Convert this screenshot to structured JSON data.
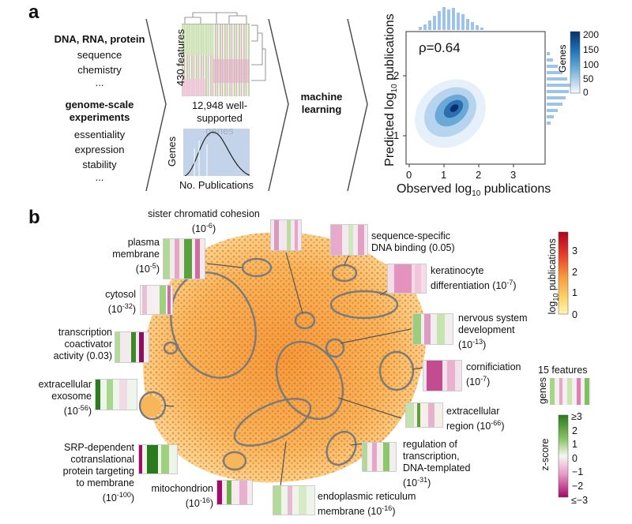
{
  "panel_a": {
    "letter": "a",
    "inputs": {
      "heading1": "DNA, RNA, protein",
      "items1": [
        "sequence",
        "chemistry",
        "..."
      ],
      "heading2": "genome-scale experiments",
      "items2": [
        "essentiality",
        "expression",
        "stability",
        "..."
      ]
    },
    "matrix": {
      "rows_label": "430 features",
      "cols_label": "12,948 well-supported genes"
    },
    "hist": {
      "ylabel": "Genes",
      "xlabel": "No. Publications"
    },
    "ml_label": "machine learning",
    "scatter": {
      "rho": "ρ=0.64",
      "xlabel": "Observed log",
      "xlabel_sub": "10",
      "xlabel_tail": " publications",
      "ylabel": "Predicted log",
      "ylabel_sub": "10",
      "ylabel_tail": " publications",
      "xticks": [
        "0",
        "1",
        "2",
        "3"
      ],
      "yticks": [
        "1",
        "2"
      ],
      "cbar_label": "Genes",
      "cbar_ticks": [
        "200",
        "150",
        "100",
        "50",
        "0"
      ],
      "cbar_colors": [
        "#08306b",
        "#2171b5",
        "#6baed6",
        "#c6dbef",
        "#f7fbff"
      ]
    }
  },
  "panel_b": {
    "letter": "b",
    "annotations": {
      "sister": "sister chromatid cohesion",
      "sister_p": "(10",
      "sister_exp": "-6",
      "seq": "sequence-specific",
      "seq2": "DNA binding (0.05)",
      "plasma1": "plasma",
      "plasma2": "membrane",
      "plasma_p": "(10",
      "plasma_exp": "-5",
      "kerat1": "keratinocyte",
      "kerat2": "differentiation (10",
      "kerat_exp": "-7",
      "cytosol": "cytosol",
      "cytosol_p": "(10",
      "cytosol_exp": "-32",
      "nerv1": "nervous system",
      "nerv2": "development",
      "nerv_p": "(10",
      "nerv_exp": "-13",
      "trans1": "transcription",
      "trans2": "coactivator",
      "trans3": "activity (0.03)",
      "corn": "cornificiation",
      "corn_p": "(10",
      "corn_exp": "-7",
      "exo1": "extracellular",
      "exo2": "exosome",
      "exo_p": "(10",
      "exo_exp": "-56",
      "region1": "extracellular",
      "region2": "region (10",
      "region_exp": "-66",
      "srp1": "SRP-dependent",
      "srp2": "cotranslational",
      "srp3": "protein targeting",
      "srp4": "to membrane",
      "srp_p": "(10",
      "srp_exp": "-100",
      "reg1": "regulation of",
      "reg2": "transcription,",
      "reg3": "DNA-templated",
      "reg_p": "(10",
      "reg_exp": "-31",
      "mito": "mitochondrion",
      "mito_p": "(10",
      "mito_exp": "-16",
      "er1": "endoplasmic reticulum",
      "er2": "membrane (10",
      "er_exp": "-16"
    },
    "pub_cbar": {
      "label": "log",
      "label_sub": "10",
      "label_tail": " publications",
      "ticks": [
        "3",
        "2",
        "1",
        "0"
      ],
      "colors": [
        "#b30021",
        "#e8452c",
        "#f79c3d",
        "#fcd36a",
        "#fff6b3"
      ]
    },
    "features_label": "15 features",
    "genes_label": "genes",
    "z_cbar": {
      "label": "z-score",
      "ticks": [
        "≥3",
        "2",
        "1",
        "0",
        "−1",
        "−2",
        "≤−3"
      ],
      "colors": [
        "#2a7a1c",
        "#8cc76a",
        "#f6f6f2",
        "#e99ac8",
        "#a30a6a"
      ]
    }
  }
}
